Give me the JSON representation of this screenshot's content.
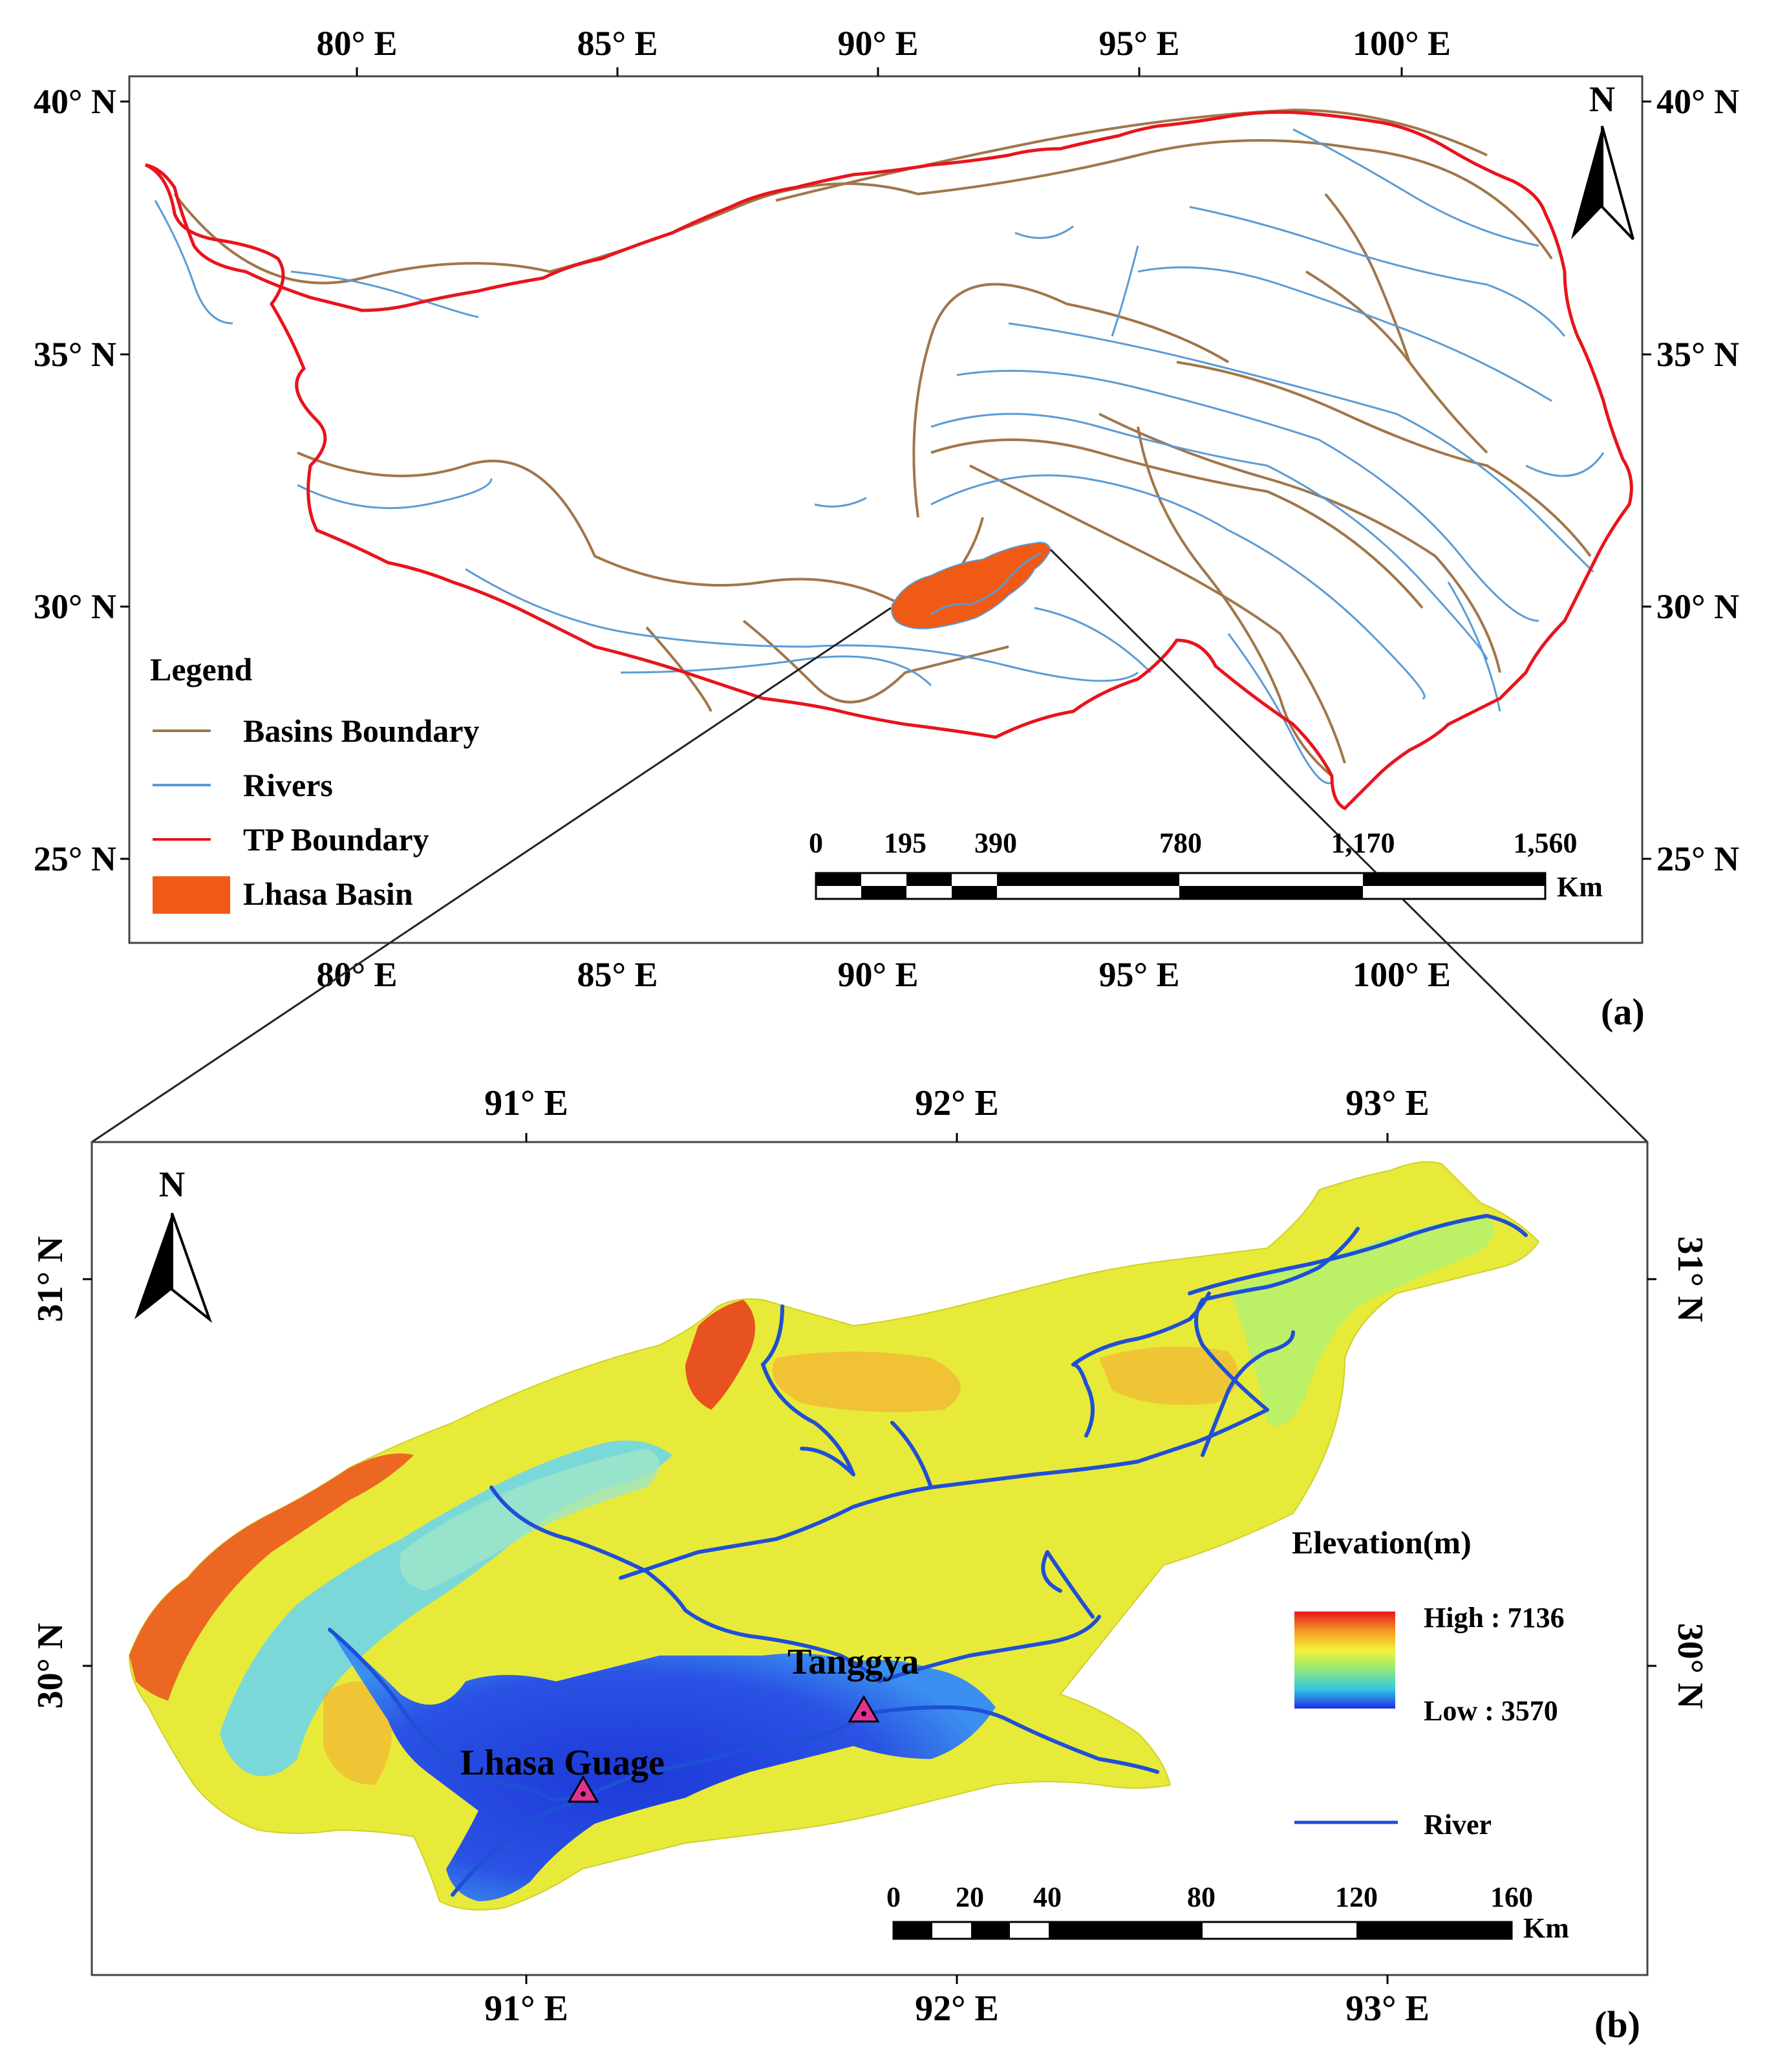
{
  "panel_a": {
    "label": "(a)",
    "top_ticks": [
      "80° E",
      "85° E",
      "90° E",
      "95° E",
      "100° E"
    ],
    "bottom_ticks": [
      "80° E",
      "85° E",
      "90° E",
      "95° E",
      "100° E"
    ],
    "left_ticks": [
      "40° N",
      "35° N",
      "30° N",
      "25° N"
    ],
    "right_ticks": [
      "40° N",
      "35° N",
      "30° N",
      "25° N"
    ],
    "north": "N",
    "legend": {
      "title": "Legend",
      "items": [
        {
          "label": "Basins Boundary",
          "color": "#a0764a",
          "icon": "line"
        },
        {
          "label": "Rivers",
          "color": "#5b9bd5",
          "icon": "line"
        },
        {
          "label": "TP Boundary",
          "color": "#e8141c",
          "icon": "line"
        },
        {
          "label": "Lhasa Basin",
          "color": "#f05a14",
          "icon": "box"
        }
      ]
    },
    "scalebar": {
      "labels": [
        "0",
        "195",
        "390",
        "780",
        "1,170",
        "1,560"
      ],
      "unit": "Km"
    }
  },
  "panel_b": {
    "label": "(b)",
    "top_ticks": [
      "91° E",
      "92° E",
      "93° E"
    ],
    "bottom_ticks": [
      "91° E",
      "92° E",
      "93° E"
    ],
    "left_ticks": [
      "31° N",
      "30° N"
    ],
    "right_ticks": [
      "31° N",
      "30° N"
    ],
    "north": "N",
    "legend": {
      "title": "Elevation(m)",
      "high": "High : 7136",
      "low": "Low : 3570",
      "river": "River"
    },
    "stations": [
      "Tanggya",
      "Lhasa Guage"
    ],
    "scalebar": {
      "labels": [
        "0",
        "20",
        "40",
        "80",
        "120",
        "160"
      ],
      "unit": "Km"
    }
  },
  "colors": {
    "tp_boundary": "#e8141c",
    "basins": "#a0764a",
    "rivers": "#5b9bd5",
    "lhasa_basin": "#f05a14",
    "river_b": "#1f4fd6",
    "station": "#e0338f"
  }
}
